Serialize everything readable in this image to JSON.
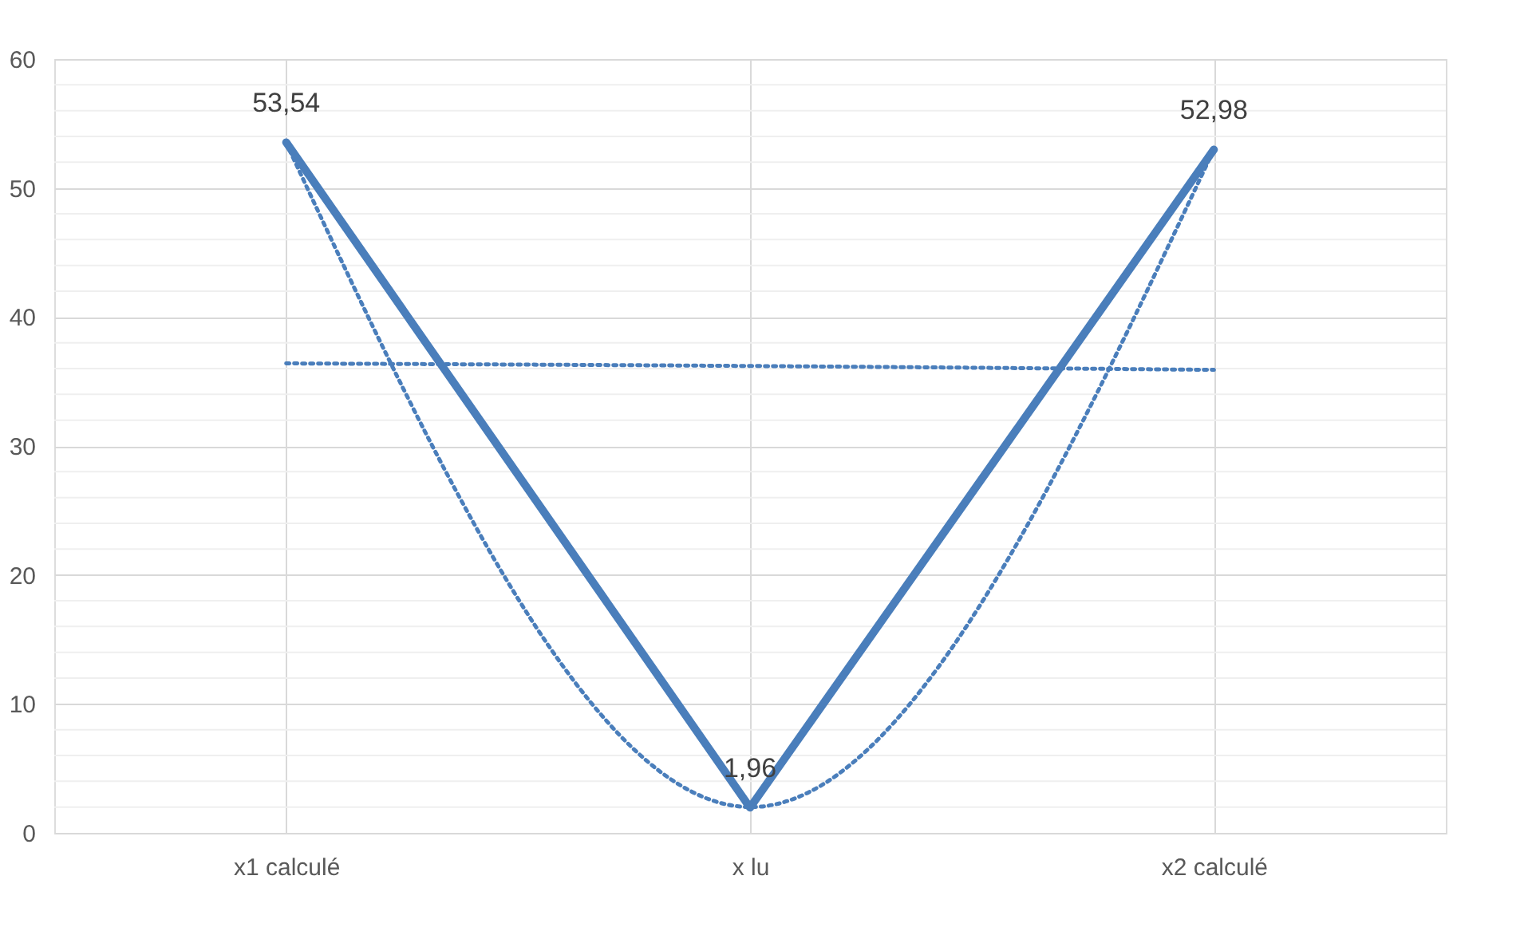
{
  "chart_data": {
    "type": "line",
    "categories": [
      "x1 calculé",
      "x lu",
      "x2 calculé"
    ],
    "series": [
      {
        "color": "#4a7ebb",
        "line_style": "dotted",
        "values": [
          36.4,
          36.2,
          35.9
        ]
      },
      {
        "color": "#4a7ebb",
        "line_style": "dotted",
        "values": [
          53.5,
          2.0,
          53.0
        ]
      },
      {
        "color": "#4a7ebb",
        "line_style": "solid",
        "values": [
          53.54,
          1.96,
          52.98
        ],
        "value_labels": [
          "53,54",
          "1,96",
          "52,98"
        ]
      }
    ],
    "ylim": [
      0,
      60
    ],
    "yticks": [
      0,
      {
        "value": 2,
        "label": null
      },
      {
        "value": 4,
        "label": null
      },
      {
        "value": 6,
        "label": null
      },
      {
        "value": 8,
        "label": null
      },
      10,
      {
        "value": 12,
        "label": null
      },
      {
        "value": 14,
        "label": null
      },
      {
        "value": 16,
        "label": null
      },
      {
        "value": 18,
        "label": null
      },
      20,
      {
        "value": 22,
        "label": null
      },
      {
        "value": 24,
        "label": null
      },
      {
        "value": 26,
        "label": null
      },
      {
        "value": 28,
        "label": null
      },
      30,
      {
        "value": 32,
        "label": null
      },
      {
        "value": 34,
        "label": null
      },
      {
        "value": 36,
        "label": null
      },
      {
        "value": 38,
        "label": null
      },
      40,
      {
        "value": 42,
        "label": null
      },
      {
        "value": 44,
        "label": null
      },
      {
        "value": 46,
        "label": null
      },
      {
        "value": 48,
        "label": null
      },
      50,
      {
        "value": 52,
        "label": null
      },
      {
        "value": 54,
        "label": null
      },
      {
        "value": 56,
        "label": null
      },
      {
        "value": 58,
        "label": null
      },
      60
    ],
    "grid": true
  }
}
